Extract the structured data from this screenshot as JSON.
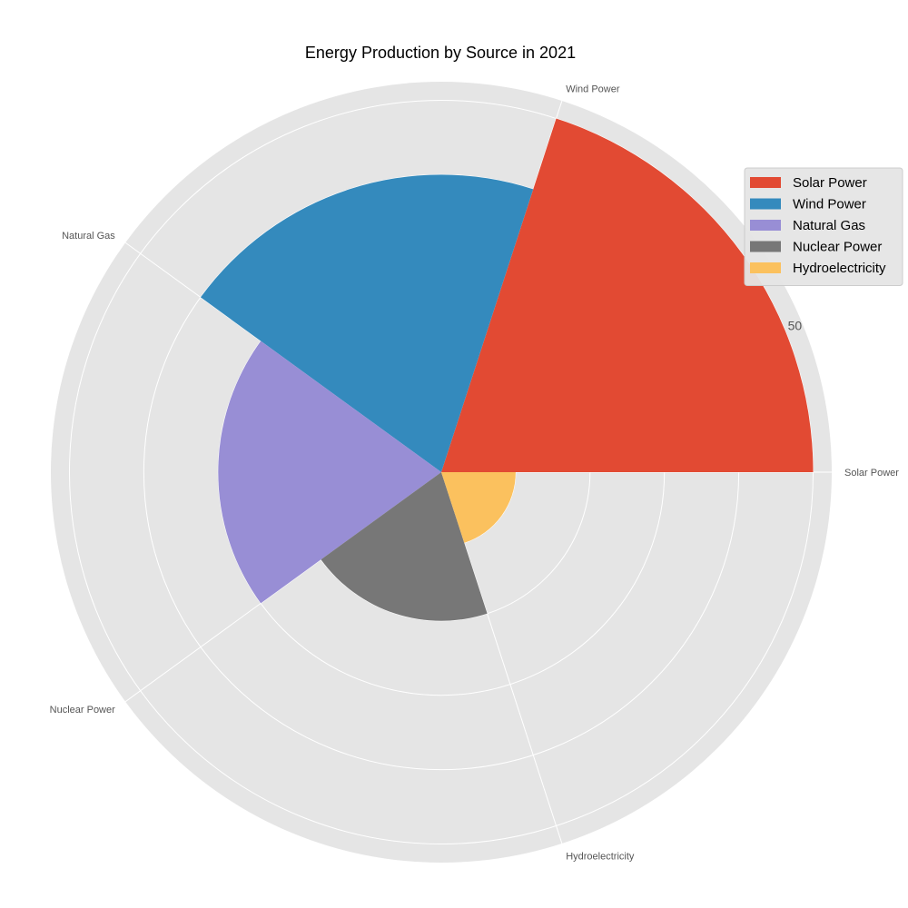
{
  "chart_data": {
    "type": "polar-bar",
    "title": "Energy Production by Source in 2021",
    "categories": [
      "Solar Power",
      "Wind Power",
      "Natural Gas",
      "Nuclear Power",
      "Hydroelectricity"
    ],
    "values": [
      50,
      40,
      30,
      20,
      10
    ],
    "colors": [
      "#E24A33",
      "#348ABD",
      "#988ED5",
      "#777777",
      "#FBC15E"
    ],
    "r_range": [
      0,
      52.5
    ],
    "r_ticks": [
      10,
      20,
      30,
      40,
      50
    ],
    "r_tick_labels": [
      "",
      "",
      "",
      "",
      "50"
    ],
    "grid": true,
    "legend": {
      "position": "top-right",
      "entries": [
        "Solar Power",
        "Wind Power",
        "Natural Gas",
        "Nuclear Power",
        "Hydroelectricity"
      ]
    }
  }
}
